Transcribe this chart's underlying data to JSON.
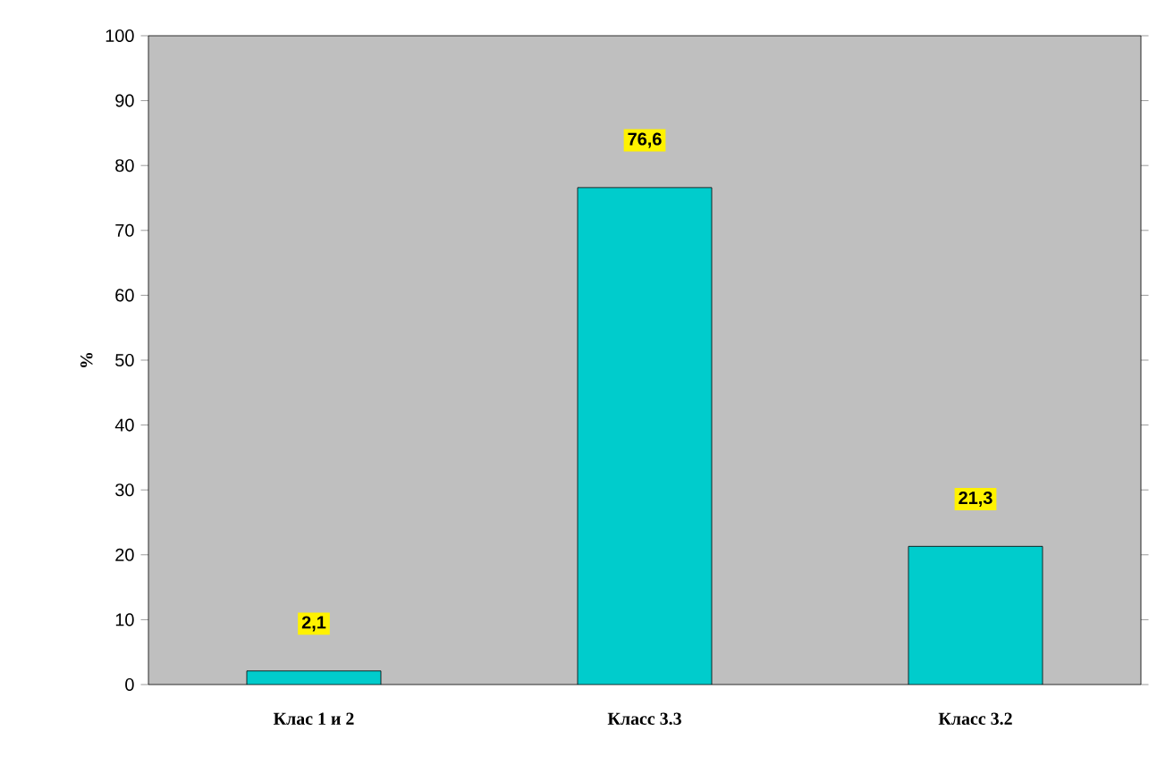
{
  "chart_data": {
    "type": "bar",
    "ylabel": "%",
    "categories": [
      "Клас 1 и 2",
      "Класс 3.3",
      "Класс 3.2"
    ],
    "values": [
      2.1,
      76.6,
      21.3
    ],
    "value_labels": [
      "2,1",
      "76,6",
      "21,3"
    ],
    "color": "#00cccc",
    "ylim": [
      0,
      100
    ],
    "yticks": [
      0,
      10,
      20,
      30,
      40,
      50,
      60,
      70,
      80,
      90,
      100
    ],
    "grid": false
  }
}
